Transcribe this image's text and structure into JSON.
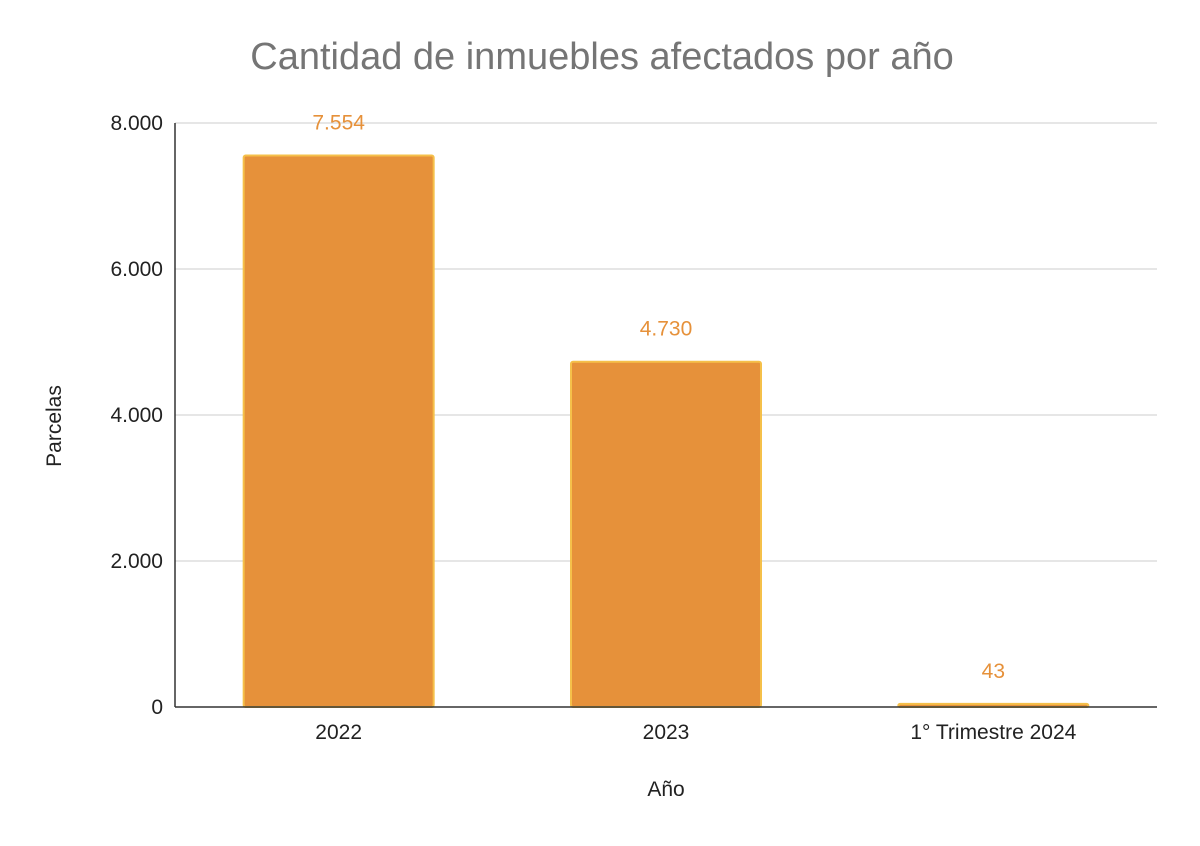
{
  "chart_data": {
    "type": "bar",
    "title": "Cantidad de inmuebles afectados por año",
    "xlabel": "Año",
    "ylabel": "Parcelas",
    "categories": [
      "2022",
      "2023",
      "1° Trimestre 2024"
    ],
    "values": [
      7554,
      4730,
      43
    ],
    "value_labels": [
      "7.554",
      "4.730",
      "43"
    ],
    "ylim": [
      0,
      8000
    ],
    "yticks": [
      0,
      2000,
      4000,
      6000,
      8000
    ],
    "ytick_labels": [
      "0",
      "2.000",
      "4.000",
      "6.000",
      "8.000"
    ],
    "grid": true,
    "legend": "none",
    "colors": {
      "bar_fill": "#E6913A",
      "bar_edge": "#F5C04A",
      "value_label": "#E6913A",
      "grid": "#CCCCCC",
      "axis": "#333333",
      "title": "#757575"
    }
  }
}
